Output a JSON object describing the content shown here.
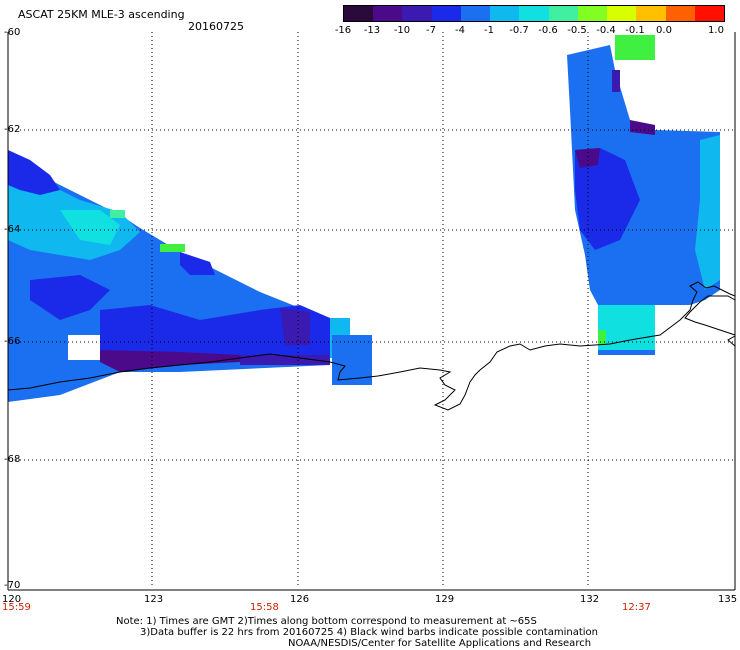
{
  "header": {
    "title": "ASCAT 25KM MLE-3 ascending",
    "date": "20160725"
  },
  "colorbar": {
    "labels": [
      "-16",
      "-13",
      "-10",
      "-7",
      "-4",
      "-1",
      "-0.7",
      "-0.6",
      "-0.5",
      "-0.4",
      "-0.1",
      "0.0",
      "1.0"
    ],
    "colors": [
      "#2a0a3a",
      "#4a0a8a",
      "#3a1ab0",
      "#1a2ae8",
      "#1a70f0",
      "#10b8f0",
      "#10e0e0",
      "#40f0a0",
      "#80ff20",
      "#d8ff00",
      "#ffc000",
      "#ff6000",
      "#ff1000"
    ]
  },
  "axes": {
    "lat_labels": [
      "-60",
      "-62",
      "-64",
      "-66",
      "-68",
      "-70"
    ],
    "lon_labels": [
      "120",
      "123",
      "126",
      "129",
      "132",
      "135"
    ],
    "time_labels": [
      "15:59",
      "15:58",
      "12:37"
    ]
  },
  "notes": {
    "line1": "Note: 1) Times are GMT 2)Times along bottom correspond to measurement at ~65S",
    "line2": "3)Data buffer is 22 hrs from 20160725 4) Black wind barbs indicate possible contamination",
    "line3": "NOAA/NESDIS/Center for Satellite Applications and Research"
  },
  "legend_colors": {
    "deep_purple": "#4a0a8a",
    "blue": "#1a2ae8",
    "mid_blue": "#1a70f0",
    "light_blue": "#10b8f0",
    "cyan": "#10e0e0",
    "green": "#40f040"
  }
}
